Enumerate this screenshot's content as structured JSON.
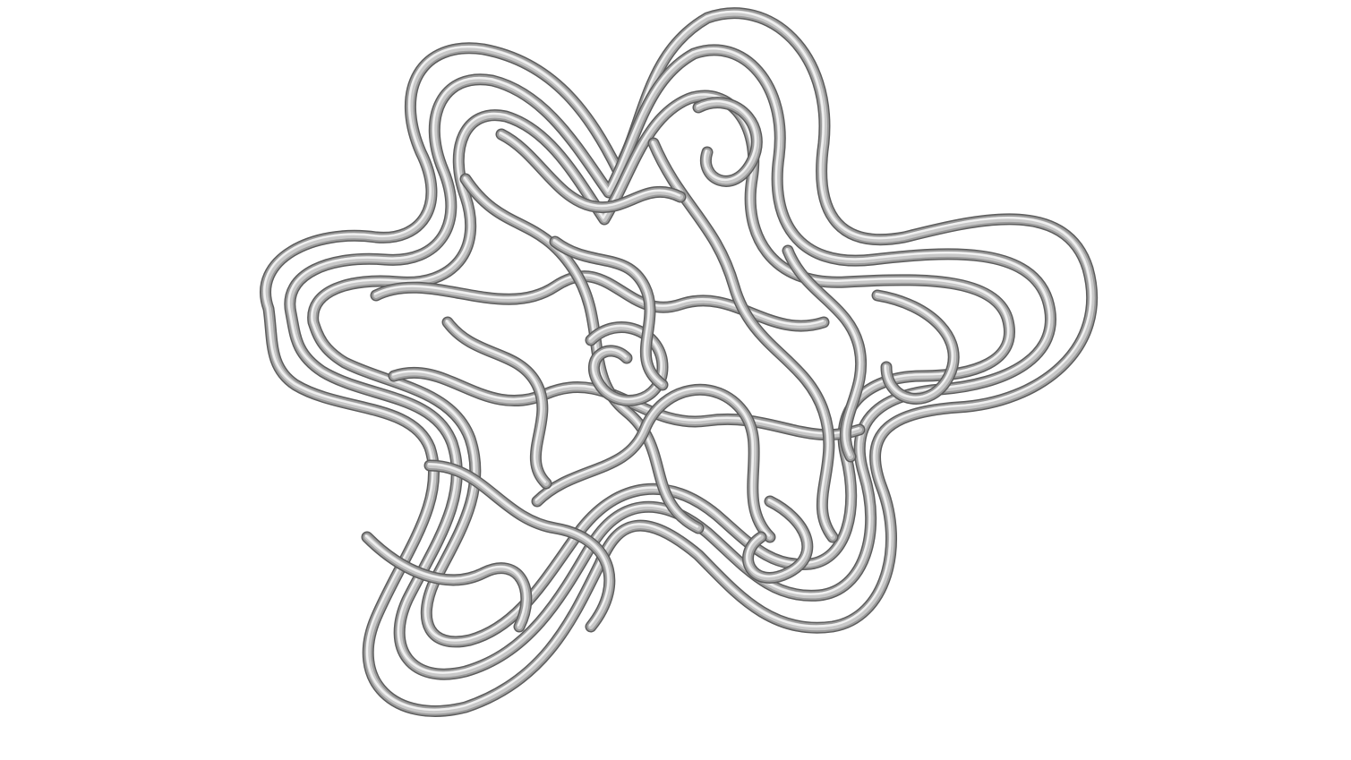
{
  "scene": {
    "background": "#ffffff",
    "subject": "wire-coil",
    "colors": {
      "tube_shadow": "#5c5c5c",
      "tube_mid": "#9a9a9a",
      "tube_highlight": "#f2f2f2",
      "tube_core": "#c8c8c8"
    }
  }
}
